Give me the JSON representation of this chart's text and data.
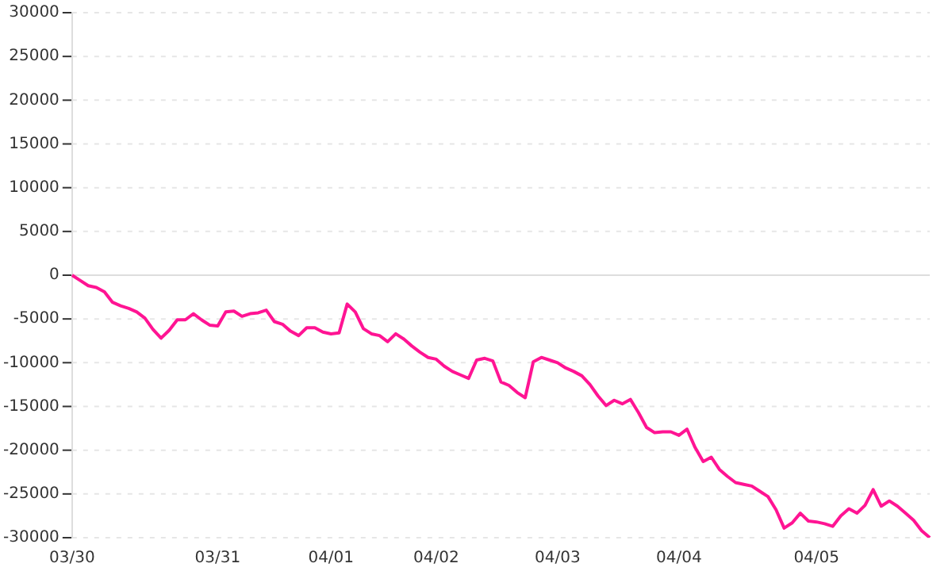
{
  "chart_data": {
    "type": "line",
    "categories": [
      "03/30",
      null,
      null,
      null,
      null,
      null,
      null,
      null,
      null,
      null,
      null,
      null,
      null,
      null,
      null,
      null,
      null,
      null,
      "03/31",
      null,
      null,
      null,
      null,
      null,
      null,
      null,
      null,
      null,
      null,
      null,
      null,
      null,
      "04/01",
      null,
      null,
      null,
      null,
      null,
      null,
      null,
      null,
      null,
      null,
      null,
      null,
      "04/02",
      null,
      null,
      null,
      null,
      null,
      null,
      null,
      null,
      null,
      null,
      null,
      null,
      null,
      null,
      "04/03",
      null,
      null,
      null,
      null,
      null,
      null,
      null,
      null,
      null,
      null,
      null,
      null,
      null,
      null,
      "04/04",
      null,
      null,
      null,
      null,
      null,
      null,
      null,
      null,
      null,
      null,
      null,
      null,
      null,
      null,
      null,
      null,
      "04/05",
      null,
      null,
      null,
      null,
      null,
      null,
      null,
      null,
      null,
      null,
      null,
      null,
      null,
      null
    ],
    "series": [
      {
        "color": "#ff1493",
        "values": [
          0,
          -600,
          -1200,
          -1400,
          -1900,
          -3100,
          -3500,
          -3800,
          -4200,
          -4900,
          -6200,
          -7200,
          -6300,
          -5100,
          -5100,
          -4400,
          -5100,
          -5700,
          -5800,
          -4200,
          -4100,
          -4700,
          -4400,
          -4300,
          -4000,
          -5300,
          -5600,
          -6400,
          -6900,
          -6000,
          -6000,
          -6500,
          -6700,
          -6600,
          -3300,
          -4200,
          -6100,
          -6700,
          -6900,
          -7600,
          -6700,
          -7300,
          -8100,
          -8800,
          -9400,
          -9600,
          -10400,
          -11000,
          -11400,
          -11800,
          -9700,
          -9500,
          -9800,
          -12200,
          -12600,
          -13400,
          -14000,
          -9900,
          -9400,
          -9700,
          -10000,
          -10600,
          -11000,
          -11500,
          -12500,
          -13800,
          -14900,
          -14300,
          -14700,
          -14200,
          -15700,
          -17400,
          -18000,
          -17900,
          -17900,
          -18300,
          -17600,
          -19700,
          -21300,
          -20800,
          -22200,
          -23000,
          -23700,
          -23900,
          -24100,
          -24700,
          -25300,
          -26800,
          -28900,
          -28300,
          -27200,
          -28100,
          -28200,
          -28400,
          -28700,
          -27500,
          -26700,
          -27200,
          -26300,
          -24500,
          -26400,
          -25800,
          -26400,
          -27200,
          -28000,
          -29200,
          -30000
        ]
      }
    ],
    "ylim": [
      -30000,
      30000
    ],
    "yticks": [
      -30000,
      -25000,
      -20000,
      -15000,
      -10000,
      -5000,
      0,
      5000,
      10000,
      15000,
      20000,
      25000,
      30000
    ],
    "grid": "y",
    "legend": false,
    "marker": "none",
    "line_style": "solid"
  }
}
